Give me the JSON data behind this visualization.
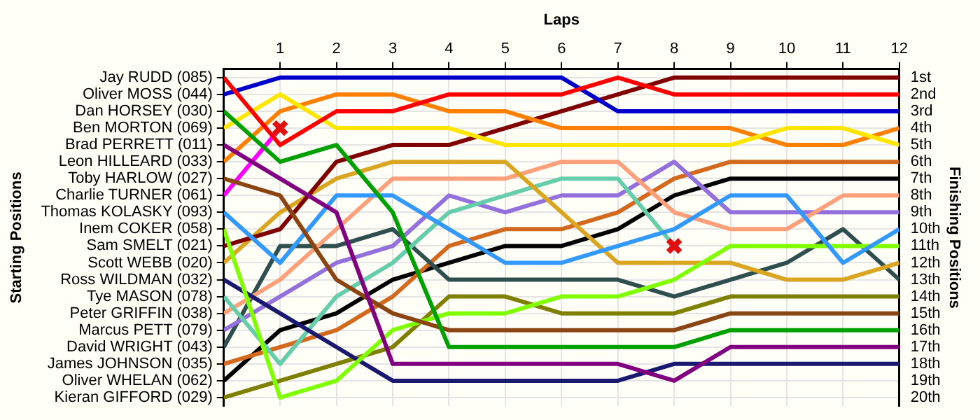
{
  "chart_data": {
    "type": "line",
    "xlabel": "Laps",
    "annotations": [
      "Starting Positions"
    ],
    "y2label": "Finishing Positions",
    "x": [
      0,
      1,
      2,
      3,
      4,
      5,
      6,
      7,
      8,
      9,
      10,
      11,
      12
    ],
    "xlim": [
      0,
      12
    ],
    "xticks": [
      1,
      2,
      3,
      4,
      5,
      6,
      7,
      8,
      9,
      10,
      11,
      12
    ],
    "y_categories": [
      "Jay RUDD (085)",
      "Oliver MOSS (044)",
      "Dan HORSEY (030)",
      "Ben MORTON (069)",
      "Brad PERRETT (011)",
      "Leon HILLEARD (033)",
      "Toby HARLOW (027)",
      "Charlie TURNER (061)",
      "Thomas KOLASKY (093)",
      "Inem COKER (058)",
      "Sam SMELT (021)",
      "Scott WEBB (020)",
      "Ross WILDMAN (032)",
      "Tye MASON (078)",
      "Peter GRIFFIN (038)",
      "Marcus PETT (079)",
      "David WRIGHT (043)",
      "James JOHNSON (035)",
      "Oliver WHELAN (062)",
      "Kieran GIFFORD (029)"
    ],
    "y2lim": [
      20.5,
      0.5
    ],
    "y2ticks": [
      {
        "value": 1,
        "label": "1st"
      },
      {
        "value": 2,
        "label": "2nd"
      },
      {
        "value": 3,
        "label": "3rd"
      },
      {
        "value": 4,
        "label": "4th"
      },
      {
        "value": 5,
        "label": "5th"
      },
      {
        "value": 6,
        "label": "6th"
      },
      {
        "value": 7,
        "label": "7th"
      },
      {
        "value": 8,
        "label": "8th"
      },
      {
        "value": 9,
        "label": "9th"
      },
      {
        "value": 10,
        "label": "10th"
      },
      {
        "value": 11,
        "label": "11th"
      },
      {
        "value": 12,
        "label": "12th"
      },
      {
        "value": 13,
        "label": "13th"
      },
      {
        "value": 14,
        "label": "14th"
      },
      {
        "value": 15,
        "label": "15th"
      },
      {
        "value": 16,
        "label": "16th"
      },
      {
        "value": 17,
        "label": "17th"
      },
      {
        "value": 18,
        "label": "18th"
      },
      {
        "value": 19,
        "label": "19th"
      },
      {
        "value": 20,
        "label": "20th"
      }
    ],
    "grid": true,
    "legend": false,
    "marker": "none",
    "series": [
      {
        "axis": "y2",
        "color": "#ff0000",
        "values": [
          1,
          5,
          3,
          3,
          2,
          2,
          2,
          1,
          2,
          2,
          2,
          2,
          2
        ]
      },
      {
        "axis": "y2",
        "color": "#0000cc",
        "values": [
          2,
          1,
          1,
          1,
          1,
          1,
          1,
          3,
          3,
          3,
          3,
          3,
          3
        ]
      },
      {
        "axis": "y2",
        "color": "#00a000",
        "values": [
          3,
          6,
          5,
          9,
          17,
          17,
          17,
          17,
          17,
          16,
          16,
          16,
          16
        ]
      },
      {
        "axis": "y2",
        "color": "#ffe600",
        "values": [
          4,
          2,
          4,
          4,
          4,
          5,
          5,
          5,
          5,
          5,
          4,
          4,
          5
        ]
      },
      {
        "axis": "y2",
        "color": "#800080",
        "values": [
          5,
          7,
          9,
          18,
          18,
          18,
          18,
          18,
          19,
          17,
          17,
          17,
          17
        ]
      },
      {
        "axis": "y2",
        "color": "#ff8000",
        "values": [
          6,
          3,
          2,
          2,
          3,
          3,
          4,
          4,
          4,
          4,
          5,
          5,
          4
        ]
      },
      {
        "axis": "y2",
        "color": "#8b4513",
        "values": [
          7,
          8,
          13,
          15,
          16,
          16,
          16,
          16,
          16,
          15,
          15,
          15,
          15
        ]
      },
      {
        "axis": "y2",
        "color": "#ff00ff",
        "values": [
          8,
          4,
          null,
          null,
          null,
          null,
          null,
          null,
          null,
          null,
          null,
          null,
          null
        ]
      },
      {
        "axis": "y2",
        "color": "#3399ff",
        "values": [
          9,
          12,
          8,
          8,
          10,
          12,
          12,
          11,
          10,
          8,
          8,
          12,
          10
        ]
      },
      {
        "axis": "y2",
        "color": "#80ff00",
        "values": [
          10,
          20,
          19,
          16,
          15,
          15,
          14,
          14,
          13,
          11,
          11,
          11,
          11
        ]
      },
      {
        "axis": "y2",
        "color": "#800000",
        "values": [
          11,
          10,
          6,
          5,
          5,
          4,
          3,
          2,
          1,
          1,
          1,
          1,
          1
        ]
      },
      {
        "axis": "y2",
        "color": "#daa520",
        "values": [
          12,
          9,
          7,
          6,
          6,
          6,
          9,
          12,
          12,
          12,
          13,
          13,
          12
        ]
      },
      {
        "axis": "y2",
        "color": "#191970",
        "values": [
          13,
          15,
          17,
          19,
          19,
          19,
          19,
          19,
          18,
          18,
          18,
          18,
          18
        ]
      },
      {
        "axis": "y2",
        "color": "#66cdaa",
        "values": [
          14,
          18,
          14,
          12,
          9,
          8,
          7,
          7,
          11,
          null,
          null,
          null,
          null
        ]
      },
      {
        "axis": "y2",
        "color": "#ffa07a",
        "values": [
          15,
          13,
          10,
          7,
          7,
          7,
          6,
          6,
          9,
          10,
          10,
          8,
          8
        ]
      },
      {
        "axis": "y2",
        "color": "#9370db",
        "values": [
          16,
          14,
          12,
          11,
          8,
          9,
          8,
          8,
          6,
          9,
          9,
          9,
          9
        ]
      },
      {
        "axis": "y2",
        "color": "#2f4f4f",
        "values": [
          17,
          11,
          11,
          10,
          13,
          13,
          13,
          13,
          14,
          13,
          12,
          10,
          13
        ]
      },
      {
        "axis": "y2",
        "color": "#d2691e",
        "values": [
          18,
          17,
          16,
          14,
          11,
          10,
          10,
          9,
          7,
          6,
          6,
          6,
          6
        ]
      },
      {
        "axis": "y2",
        "color": "#000000",
        "values": [
          19,
          16,
          15,
          13,
          12,
          11,
          11,
          10,
          8,
          7,
          7,
          7,
          7
        ]
      },
      {
        "axis": "y2",
        "color": "#808000",
        "values": [
          20,
          19,
          18,
          17,
          14,
          14,
          15,
          15,
          15,
          14,
          14,
          14,
          14
        ]
      },
      {
        "axis": "y2",
        "type": "scatter",
        "marker": "cross",
        "color": "#e01010",
        "x": [
          1,
          8
        ],
        "values": [
          4,
          11
        ]
      }
    ]
  }
}
